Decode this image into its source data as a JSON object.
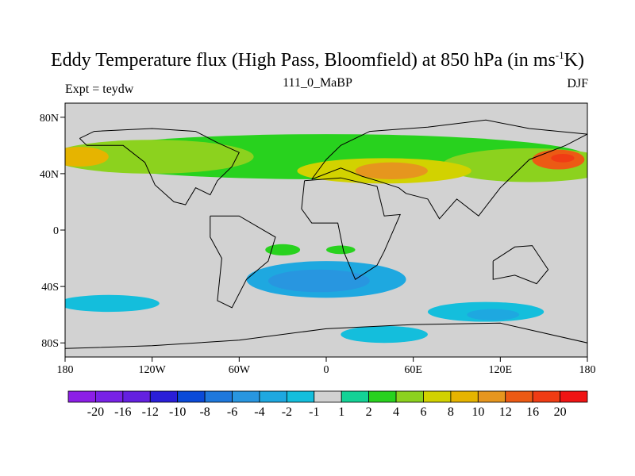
{
  "title": {
    "main": "Eddy Temperature flux (High Pass, Bloomfield) at 850 hPa (in ms",
    "sup": "-1",
    "tail": "K)"
  },
  "subtitle": "111_0_MaBP",
  "left_label": "Expt = teydw",
  "right_label": "DJF",
  "chart_data": {
    "type": "heatmap",
    "title": "Eddy Temperature flux (High Pass, Bloomfield) at 850 hPa (in ms-1K)",
    "xlabel": "",
    "ylabel": "",
    "x_ticks": [
      {
        "lon": -180,
        "label": "180"
      },
      {
        "lon": -120,
        "label": "120W"
      },
      {
        "lon": -60,
        "label": "60W"
      },
      {
        "lon": 0,
        "label": "0"
      },
      {
        "lon": 60,
        "label": "60E"
      },
      {
        "lon": 120,
        "label": "120E"
      },
      {
        "lon": 180,
        "label": "180"
      }
    ],
    "y_ticks": [
      {
        "lat": 80,
        "label": "80N"
      },
      {
        "lat": 40,
        "label": "40N"
      },
      {
        "lat": 0,
        "label": "0"
      },
      {
        "lat": -40,
        "label": "40S"
      },
      {
        "lat": -80,
        "label": "80S"
      }
    ],
    "xlim": [
      -180,
      180
    ],
    "ylim": [
      -90,
      90
    ],
    "colorbar": {
      "labels": [
        "-20",
        "-16",
        "-12",
        "-10",
        "-8",
        "-6",
        "-4",
        "-2",
        "-1",
        "1",
        "2",
        "4",
        "6",
        "8",
        "10",
        "12",
        "16",
        "20"
      ],
      "colors": [
        "#8c1ee6",
        "#7822e6",
        "#6420e0",
        "#2a1ed8",
        "#0a4ad8",
        "#1e78dc",
        "#2896e0",
        "#1ea8e0",
        "#14bedc",
        "#d2d2d2",
        "#14d296",
        "#28d21e",
        "#8cd21e",
        "#d2d200",
        "#e6b400",
        "#e6961e",
        "#ec5a14",
        "#f03c14",
        "#f01414"
      ]
    },
    "blobs": [
      {
        "name": "nh-storm-track-band",
        "lon": 0,
        "lat": 52,
        "rx": 180,
        "ry": 16,
        "value": 2
      },
      {
        "name": "nh-atlantic-band",
        "lon": -120,
        "lat": 52,
        "rx": 70,
        "ry": 12,
        "value": 4
      },
      {
        "name": "nh-pacific-band",
        "lon": 140,
        "lat": 46,
        "rx": 60,
        "ry": 12,
        "value": 4
      },
      {
        "name": "nh-eurasia-band",
        "lon": 40,
        "lat": 42,
        "rx": 60,
        "ry": 9,
        "value": 6
      },
      {
        "name": "nh-atlantic-core",
        "lon": -170,
        "lat": 52,
        "rx": 20,
        "ry": 7,
        "value": 8
      },
      {
        "name": "nh-asia-core",
        "lon": 45,
        "lat": 42,
        "rx": 25,
        "ry": 6,
        "value": 10
      },
      {
        "name": "nh-pacific-core",
        "lon": 160,
        "lat": 50,
        "rx": 18,
        "ry": 7,
        "value": 12
      },
      {
        "name": "nh-pacific-peak",
        "lon": 163,
        "lat": 51,
        "rx": 8,
        "ry": 3,
        "value": 16
      },
      {
        "name": "sh-south-america-band",
        "lon": 0,
        "lat": -35,
        "rx": 55,
        "ry": 13,
        "value": -4
      },
      {
        "name": "sh-south-america-core",
        "lon": -5,
        "lat": -36,
        "rx": 35,
        "ry": 8,
        "value": -6
      },
      {
        "name": "sh-atlantic-band",
        "lon": -150,
        "lat": -52,
        "rx": 35,
        "ry": 6,
        "value": -2
      },
      {
        "name": "sh-indian-band",
        "lon": 110,
        "lat": -58,
        "rx": 40,
        "ry": 7,
        "value": -2
      },
      {
        "name": "sh-indian-core",
        "lon": 115,
        "lat": -60,
        "rx": 18,
        "ry": 4,
        "value": -4
      },
      {
        "name": "sh-pacific-band",
        "lon": 40,
        "lat": -74,
        "rx": 30,
        "ry": 6,
        "value": -2
      },
      {
        "name": "sh-positive-patch",
        "lon": -30,
        "lat": -14,
        "rx": 12,
        "ry": 4,
        "value": 2
      },
      {
        "name": "sh-positive-patch-2",
        "lon": 10,
        "lat": -14,
        "rx": 10,
        "ry": 3,
        "value": 2
      }
    ],
    "coastlines": [
      {
        "name": "africa-outline",
        "points": [
          [
            -15,
            35
          ],
          [
            10,
            37
          ],
          [
            35,
            31
          ],
          [
            40,
            10
          ],
          [
            51,
            11
          ],
          [
            40,
            -15
          ],
          [
            35,
            -25
          ],
          [
            20,
            -35
          ],
          [
            12,
            -15
          ],
          [
            8,
            5
          ],
          [
            -10,
            5
          ],
          [
            -17,
            15
          ],
          [
            -15,
            35
          ]
        ]
      },
      {
        "name": "south-america-outline",
        "points": [
          [
            -80,
            10
          ],
          [
            -60,
            10
          ],
          [
            -35,
            -5
          ],
          [
            -40,
            -22
          ],
          [
            -55,
            -35
          ],
          [
            -65,
            -55
          ],
          [
            -75,
            -50
          ],
          [
            -72,
            -20
          ],
          [
            -80,
            -5
          ],
          [
            -80,
            10
          ]
        ]
      },
      {
        "name": "eurasia-outline",
        "points": [
          [
            -10,
            36
          ],
          [
            0,
            50
          ],
          [
            10,
            60
          ],
          [
            30,
            70
          ],
          [
            70,
            73
          ],
          [
            110,
            78
          ],
          [
            140,
            72
          ],
          [
            180,
            68
          ],
          [
            165,
            60
          ],
          [
            140,
            50
          ],
          [
            120,
            30
          ],
          [
            105,
            10
          ],
          [
            90,
            22
          ],
          [
            78,
            8
          ],
          [
            70,
            22
          ],
          [
            55,
            26
          ],
          [
            50,
            30
          ],
          [
            35,
            35
          ],
          [
            25,
            38
          ],
          [
            10,
            44
          ],
          [
            -10,
            36
          ]
        ]
      },
      {
        "name": "north-america-outline",
        "points": [
          [
            -170,
            65
          ],
          [
            -160,
            70
          ],
          [
            -120,
            72
          ],
          [
            -90,
            70
          ],
          [
            -75,
            62
          ],
          [
            -60,
            55
          ],
          [
            -65,
            45
          ],
          [
            -75,
            35
          ],
          [
            -80,
            25
          ],
          [
            -90,
            30
          ],
          [
            -97,
            18
          ],
          [
            -105,
            20
          ],
          [
            -118,
            32
          ],
          [
            -125,
            48
          ],
          [
            -140,
            60
          ],
          [
            -165,
            60
          ],
          [
            -170,
            65
          ]
        ]
      },
      {
        "name": "australia-outline",
        "points": [
          [
            115,
            -22
          ],
          [
            130,
            -12
          ],
          [
            142,
            -11
          ],
          [
            153,
            -28
          ],
          [
            145,
            -38
          ],
          [
            130,
            -32
          ],
          [
            115,
            -35
          ],
          [
            115,
            -22
          ]
        ]
      },
      {
        "name": "antarctica-outline",
        "points": [
          [
            -180,
            -84
          ],
          [
            -120,
            -82
          ],
          [
            -60,
            -78
          ],
          [
            0,
            -70
          ],
          [
            60,
            -67
          ],
          [
            120,
            -66
          ],
          [
            180,
            -80
          ]
        ]
      }
    ]
  }
}
